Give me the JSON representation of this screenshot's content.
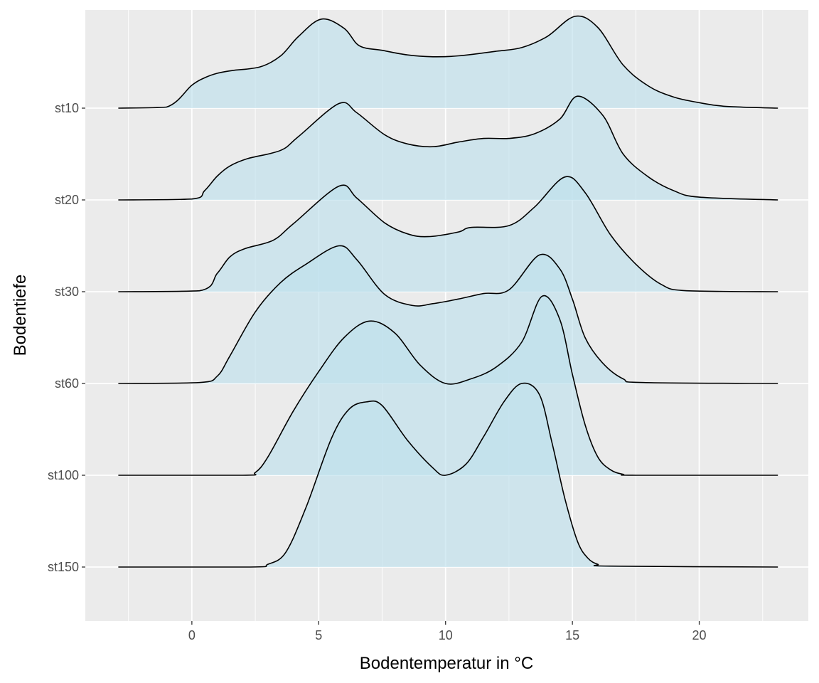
{
  "chart_data": {
    "type": "ridgeline",
    "title": "",
    "xlabel": "Bodentemperatur in °C",
    "ylabel": "Bodentiefe",
    "xlim": [
      -4.2,
      24.3
    ],
    "x_ticks": [
      0,
      5,
      10,
      15,
      20
    ],
    "categories": [
      "st10",
      "st20",
      "st30",
      "st60",
      "st100",
      "st150"
    ],
    "grid": true,
    "fill_color": "#bfe0ec",
    "fill_opacity": 0.65,
    "line_color": "#000000",
    "panel_background": "#ebebeb",
    "gridline_color": "#ffffff",
    "series": [
      {
        "name": "st10",
        "x": [
          -2.9,
          -1,
          0,
          0.5,
          1,
          1.6,
          2.7,
          3.5,
          4.2,
          5.1,
          6,
          6.6,
          7.5,
          8.5,
          9.5,
          10.5,
          12,
          13,
          14,
          15.1,
          16,
          17,
          18,
          19,
          20,
          21,
          23.1
        ],
        "density": [
          0,
          0.012,
          0.25,
          0.33,
          0.38,
          0.41,
          0.45,
          0.57,
          0.78,
          0.97,
          0.87,
          0.68,
          0.63,
          0.58,
          0.56,
          0.57,
          0.62,
          0.66,
          0.78,
          1.0,
          0.88,
          0.47,
          0.24,
          0.12,
          0.06,
          0.02,
          0
        ]
      },
      {
        "name": "st20",
        "x": [
          -2.9,
          0,
          0.5,
          1,
          1.5,
          2.2,
          3.5,
          4.2,
          5.8,
          6.5,
          7.6,
          8.5,
          9.5,
          10.5,
          11.5,
          12.5,
          13.5,
          14.5,
          15.2,
          16.2,
          17,
          18,
          19,
          20,
          23.1
        ],
        "density": [
          0,
          0.01,
          0.1,
          0.26,
          0.37,
          0.45,
          0.54,
          0.69,
          1.05,
          0.95,
          0.71,
          0.61,
          0.58,
          0.63,
          0.67,
          0.67,
          0.72,
          0.88,
          1.13,
          0.92,
          0.5,
          0.25,
          0.1,
          0.03,
          0
        ]
      },
      {
        "name": "st30",
        "x": [
          -2.9,
          0.3,
          1,
          1.5,
          2.1,
          3.2,
          4,
          5.8,
          6.5,
          7.6,
          8.5,
          9.3,
          10.5,
          11,
          12.5,
          13.5,
          14.7,
          15.5,
          16.5,
          17.5,
          18.5,
          19.5,
          23.1
        ],
        "density": [
          0,
          0.01,
          0.2,
          0.38,
          0.47,
          0.56,
          0.74,
          1.15,
          1.02,
          0.75,
          0.63,
          0.6,
          0.65,
          0.7,
          0.72,
          0.92,
          1.25,
          1.08,
          0.62,
          0.3,
          0.08,
          0.01,
          0
        ]
      },
      {
        "name": "st60",
        "x": [
          -2.9,
          0.3,
          1,
          1.5,
          2.5,
          3.5,
          4.5,
          5.8,
          6.5,
          7.6,
          8.7,
          9.5,
          10.5,
          11.5,
          12.5,
          13.7,
          14.5,
          15,
          15.5,
          16.2,
          17,
          17.8,
          23.1
        ],
        "density": [
          0,
          0.01,
          0.08,
          0.3,
          0.78,
          1.1,
          1.3,
          1.5,
          1.35,
          0.97,
          0.85,
          0.87,
          0.92,
          0.98,
          1.02,
          1.4,
          1.25,
          0.92,
          0.5,
          0.22,
          0.05,
          0.01,
          0
        ]
      },
      {
        "name": "st100",
        "x": [
          -2.9,
          2,
          2.5,
          3,
          4,
          5,
          6,
          7,
          8,
          9,
          10,
          11,
          12,
          13,
          13.8,
          14.5,
          15,
          15.5,
          16,
          16.5,
          17,
          17.5,
          23.1
        ],
        "density": [
          0,
          0,
          0.03,
          0.2,
          0.7,
          1.13,
          1.5,
          1.68,
          1.55,
          1.2,
          1.0,
          1.05,
          1.18,
          1.45,
          1.95,
          1.7,
          1.1,
          0.55,
          0.2,
          0.06,
          0.01,
          0,
          0
        ]
      },
      {
        "name": "st150",
        "x": [
          -2.9,
          2.3,
          3,
          3.7,
          4.5,
          5.5,
          6.2,
          6.9,
          7.5,
          8.5,
          9.5,
          10,
          10.8,
          11.5,
          12.3,
          13,
          13.7,
          14.2,
          14.7,
          15.2,
          15.6,
          16,
          16.5,
          23.1
        ],
        "density": [
          0,
          0,
          0.03,
          0.16,
          0.65,
          1.4,
          1.72,
          1.8,
          1.76,
          1.38,
          1.08,
          1.0,
          1.12,
          1.42,
          1.8,
          2.0,
          1.88,
          1.35,
          0.75,
          0.28,
          0.1,
          0.03,
          0.01,
          0
        ]
      }
    ]
  }
}
